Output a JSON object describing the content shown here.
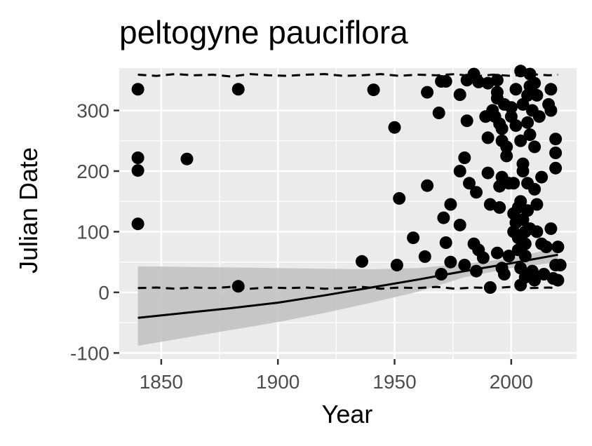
{
  "chart_data": {
    "type": "scatter",
    "title": "peltogyne pauciflora",
    "xlabel": "Year",
    "ylabel": "Julian Date",
    "xlim": [
      1832,
      2028
    ],
    "ylim": [
      -110,
      370
    ],
    "x_ticks": [
      1850,
      1900,
      1950,
      2000
    ],
    "x_tick_labels": [
      "1850",
      "1900",
      "1950",
      "2000"
    ],
    "y_ticks": [
      -100,
      0,
      100,
      200,
      300
    ],
    "y_tick_labels": [
      "-100",
      "0",
      "100",
      "200",
      "300"
    ],
    "grid": true,
    "background": "#ebebeb",
    "point_color": "#000000",
    "ribbon_color": "#bfbfbf",
    "points": [
      [
        1840,
        335
      ],
      [
        1840,
        222
      ],
      [
        1840,
        201
      ],
      [
        1840,
        113
      ],
      [
        1861,
        220
      ],
      [
        1883,
        335
      ],
      [
        1883,
        10
      ],
      [
        1936,
        51
      ],
      [
        1941,
        334
      ],
      [
        1950,
        272
      ],
      [
        1951,
        45
      ],
      [
        1952,
        155
      ],
      [
        1958,
        90
      ],
      [
        1963,
        59
      ],
      [
        1964,
        176
      ],
      [
        1964,
        330
      ],
      [
        1969,
        296
      ],
      [
        1970,
        30
      ],
      [
        1970,
        348
      ],
      [
        1971,
        123
      ],
      [
        1972,
        348
      ],
      [
        1972,
        82
      ],
      [
        1974,
        50
      ],
      [
        1974,
        145
      ],
      [
        1978,
        326
      ],
      [
        1978,
        111
      ],
      [
        1978,
        200
      ],
      [
        1980,
        45
      ],
      [
        1980,
        222
      ],
      [
        1981,
        283
      ],
      [
        1981,
        350
      ],
      [
        1982,
        180
      ],
      [
        1984,
        360
      ],
      [
        1984,
        80
      ],
      [
        1985,
        165
      ],
      [
        1985,
        35
      ],
      [
        1986,
        70
      ],
      [
        1986,
        347
      ],
      [
        1988,
        57
      ],
      [
        1989,
        290
      ],
      [
        1990,
        345
      ],
      [
        1990,
        255
      ],
      [
        1990,
        197
      ],
      [
        1991,
        8
      ],
      [
        1991,
        145
      ],
      [
        1992,
        300
      ],
      [
        1993,
        290
      ],
      [
        1994,
        350
      ],
      [
        1994,
        320
      ],
      [
        1994,
        330
      ],
      [
        1994,
        65
      ],
      [
        1995,
        175
      ],
      [
        1995,
        140
      ],
      [
        1995,
        278
      ],
      [
        1996,
        190
      ],
      [
        1996,
        250
      ],
      [
        1996,
        270
      ],
      [
        1996,
        40
      ],
      [
        1997,
        310
      ],
      [
        1997,
        30
      ],
      [
        1998,
        240
      ],
      [
        1998,
        225
      ],
      [
        1999,
        60
      ],
      [
        1999,
        180
      ],
      [
        2000,
        290
      ],
      [
        2000,
        305
      ],
      [
        2001,
        180
      ],
      [
        2001,
        130
      ],
      [
        2001,
        100
      ],
      [
        2002,
        335
      ],
      [
        2002,
        275
      ],
      [
        2002,
        115
      ],
      [
        2003,
        140
      ],
      [
        2003,
        90
      ],
      [
        2003,
        70
      ],
      [
        2004,
        365
      ],
      [
        2004,
        250
      ],
      [
        2004,
        150
      ],
      [
        2004,
        12
      ],
      [
        2004,
        40
      ],
      [
        2005,
        310
      ],
      [
        2005,
        212
      ],
      [
        2005,
        200
      ],
      [
        2005,
        120
      ],
      [
        2006,
        100
      ],
      [
        2006,
        80
      ],
      [
        2006,
        60
      ],
      [
        2006,
        25
      ],
      [
        2007,
        325
      ],
      [
        2007,
        280
      ],
      [
        2007,
        180
      ],
      [
        2007,
        135
      ],
      [
        2008,
        360
      ],
      [
        2008,
        340
      ],
      [
        2008,
        260
      ],
      [
        2008,
        105
      ],
      [
        2009,
        300
      ],
      [
        2009,
        35
      ],
      [
        2010,
        345
      ],
      [
        2010,
        240
      ],
      [
        2010,
        170
      ],
      [
        2010,
        20
      ],
      [
        2011,
        325
      ],
      [
        2011,
        145
      ],
      [
        2011,
        100
      ],
      [
        2012,
        290
      ],
      [
        2013,
        190
      ],
      [
        2013,
        80
      ],
      [
        2014,
        30
      ],
      [
        2015,
        75
      ],
      [
        2016,
        310
      ],
      [
        2017,
        335
      ],
      [
        2017,
        300
      ],
      [
        2017,
        105
      ],
      [
        2018,
        23
      ],
      [
        2019,
        253
      ],
      [
        2019,
        230
      ],
      [
        2019,
        205
      ],
      [
        2019,
        45
      ],
      [
        2020,
        75
      ],
      [
        2020,
        20
      ],
      [
        2021,
        45
      ]
    ],
    "fit_line": {
      "x": [
        1840,
        1860,
        1880,
        1900,
        1920,
        1940,
        1960,
        1980,
        2000,
        2020
      ],
      "y": [
        -42,
        -34,
        -26,
        -17,
        -5,
        8,
        21,
        35,
        48,
        62
      ]
    },
    "confidence_band": {
      "x": [
        1840,
        1860,
        1880,
        1900,
        1920,
        1940,
        1960,
        1980,
        2000,
        2020
      ],
      "lower": [
        -88,
        -75,
        -62,
        -49,
        -34,
        -17,
        1,
        25,
        40,
        50
      ],
      "upper": [
        43,
        42,
        41,
        40,
        39,
        38,
        40,
        47,
        56,
        74
      ]
    },
    "upper_dashed_line": {
      "x": [
        1840,
        1848,
        1856,
        1864,
        1872,
        1880,
        1888,
        1896,
        1904,
        1912,
        1920,
        1928,
        1936,
        1944,
        1952,
        1960,
        1968,
        1976,
        1984,
        1992,
        2000,
        2008,
        2016,
        2020
      ],
      "y": [
        359,
        357,
        360,
        358,
        359,
        356,
        360,
        358,
        357,
        359,
        360,
        357,
        358,
        360,
        357,
        359,
        358,
        360,
        356,
        359,
        357,
        360,
        358,
        359
      ]
    },
    "lower_dashed_line": {
      "x": [
        1840,
        1848,
        1856,
        1864,
        1872,
        1880,
        1888,
        1896,
        1904,
        1912,
        1920,
        1928,
        1936,
        1944,
        1952,
        1960,
        1968,
        1976,
        1984,
        1992,
        2000,
        2008,
        2016,
        2020
      ],
      "y": [
        7,
        8,
        6,
        8,
        7,
        9,
        6,
        8,
        7,
        8,
        6,
        7,
        9,
        6,
        8,
        7,
        9,
        6,
        8,
        7,
        9,
        7,
        8,
        7
      ]
    }
  }
}
